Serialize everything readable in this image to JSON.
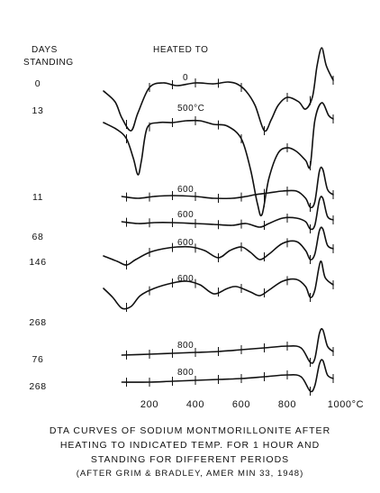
{
  "header": {
    "days_label_line1": "DAYS",
    "days_label_line2": "STANDING",
    "heated_label": "HEATED TO"
  },
  "caption": {
    "line1": "DTA CURVES OF SODIUM MONTMORILLONITE AFTER",
    "line2": "HEATING TO INDICATED TEMP. FOR 1 HOUR AND",
    "line3": "STANDING FOR DIFFERENT PERIODS",
    "line4": "(AFTER GRIM & BRADLEY, AMER MIN 33, 1948)"
  },
  "chart_data": {
    "type": "line",
    "title": "",
    "xlabel": "",
    "ylabel": "",
    "x_ticks": [
      200,
      400,
      600,
      800,
      "1000°C"
    ],
    "xlim": [
      0,
      1050
    ],
    "y_axis_values_shown": false,
    "grid": false,
    "curves": [
      {
        "days": "0",
        "heated": "0",
        "points": [
          [
            0,
            -6
          ],
          [
            50,
            -18
          ],
          [
            80,
            -36
          ],
          [
            120,
            -50
          ],
          [
            150,
            -30
          ],
          [
            200,
            -2
          ],
          [
            260,
            3
          ],
          [
            320,
            0
          ],
          [
            400,
            3
          ],
          [
            480,
            2
          ],
          [
            540,
            4
          ],
          [
            580,
            2
          ],
          [
            620,
            -6
          ],
          [
            660,
            -22
          ],
          [
            700,
            -50
          ],
          [
            730,
            -38
          ],
          [
            760,
            -22
          ],
          [
            800,
            -13
          ],
          [
            850,
            -18
          ],
          [
            880,
            -26
          ],
          [
            910,
            -12
          ],
          [
            930,
            22
          ],
          [
            950,
            42
          ],
          [
            970,
            22
          ],
          [
            1000,
            6
          ]
        ]
      },
      {
        "days": "13",
        "heated": "500°C",
        "points": [
          [
            0,
            -8
          ],
          [
            60,
            -16
          ],
          [
            100,
            -26
          ],
          [
            130,
            -48
          ],
          [
            150,
            -66
          ],
          [
            165,
            -50
          ],
          [
            190,
            -14
          ],
          [
            240,
            -8
          ],
          [
            300,
            -8
          ],
          [
            360,
            -6
          ],
          [
            420,
            -6
          ],
          [
            480,
            -10
          ],
          [
            540,
            -12
          ],
          [
            600,
            -26
          ],
          [
            640,
            -60
          ],
          [
            670,
            -98
          ],
          [
            690,
            -110
          ],
          [
            720,
            -70
          ],
          [
            760,
            -42
          ],
          [
            800,
            -36
          ],
          [
            840,
            -40
          ],
          [
            880,
            -50
          ],
          [
            900,
            -56
          ],
          [
            920,
            -6
          ],
          [
            950,
            14
          ],
          [
            980,
            0
          ],
          [
            1000,
            -4
          ]
        ]
      },
      {
        "days": "11",
        "heated": "600",
        "points": [
          [
            80,
            0
          ],
          [
            150,
            -2
          ],
          [
            220,
            0
          ],
          [
            300,
            1
          ],
          [
            400,
            0
          ],
          [
            480,
            -2
          ],
          [
            560,
            -2
          ],
          [
            620,
            0
          ],
          [
            660,
            2
          ],
          [
            720,
            4
          ],
          [
            780,
            6
          ],
          [
            840,
            6
          ],
          [
            880,
            -2
          ],
          [
            900,
            -12
          ],
          [
            920,
            -6
          ],
          [
            940,
            28
          ],
          [
            955,
            30
          ],
          [
            975,
            8
          ],
          [
            1000,
            2
          ]
        ]
      },
      {
        "days": "68",
        "heated": "600",
        "points": [
          [
            80,
            0
          ],
          [
            150,
            -2
          ],
          [
            220,
            -1
          ],
          [
            300,
            -1
          ],
          [
            400,
            -2
          ],
          [
            480,
            -3
          ],
          [
            560,
            -4
          ],
          [
            620,
            -2
          ],
          [
            680,
            -6
          ],
          [
            720,
            -2
          ],
          [
            780,
            4
          ],
          [
            840,
            4
          ],
          [
            880,
            0
          ],
          [
            900,
            -8
          ],
          [
            920,
            -4
          ],
          [
            940,
            24
          ],
          [
            955,
            26
          ],
          [
            975,
            6
          ],
          [
            1000,
            2
          ]
        ]
      },
      {
        "days": "146",
        "heated": "600",
        "points": [
          [
            0,
            -6
          ],
          [
            60,
            -12
          ],
          [
            100,
            -16
          ],
          [
            140,
            -10
          ],
          [
            200,
            -2
          ],
          [
            260,
            2
          ],
          [
            320,
            4
          ],
          [
            380,
            4
          ],
          [
            440,
            0
          ],
          [
            500,
            -8
          ],
          [
            550,
            0
          ],
          [
            600,
            4
          ],
          [
            640,
            -2
          ],
          [
            680,
            -10
          ],
          [
            720,
            -4
          ],
          [
            780,
            8
          ],
          [
            840,
            10
          ],
          [
            880,
            0
          ],
          [
            900,
            -10
          ],
          [
            920,
            -4
          ],
          [
            940,
            22
          ],
          [
            955,
            24
          ],
          [
            975,
            6
          ],
          [
            1000,
            2
          ]
        ]
      },
      {
        "days": "268",
        "heated": "600",
        "points": [
          [
            0,
            -2
          ],
          [
            40,
            -12
          ],
          [
            80,
            -24
          ],
          [
            120,
            -22
          ],
          [
            160,
            -10
          ],
          [
            220,
            -2
          ],
          [
            300,
            4
          ],
          [
            360,
            6
          ],
          [
            420,
            2
          ],
          [
            480,
            -8
          ],
          [
            540,
            -2
          ],
          [
            580,
            0
          ],
          [
            640,
            -6
          ],
          [
            680,
            -10
          ],
          [
            720,
            -4
          ],
          [
            780,
            6
          ],
          [
            840,
            8
          ],
          [
            880,
            0
          ],
          [
            900,
            -12
          ],
          [
            920,
            -4
          ],
          [
            945,
            28
          ],
          [
            965,
            10
          ],
          [
            1000,
            2
          ]
        ]
      },
      {
        "days": "76",
        "heated": "800",
        "points": [
          [
            80,
            0
          ],
          [
            200,
            1
          ],
          [
            300,
            2
          ],
          [
            400,
            3
          ],
          [
            500,
            4
          ],
          [
            600,
            6
          ],
          [
            700,
            8
          ],
          [
            800,
            10
          ],
          [
            860,
            8
          ],
          [
            900,
            -8
          ],
          [
            920,
            -4
          ],
          [
            940,
            24
          ],
          [
            955,
            28
          ],
          [
            975,
            10
          ],
          [
            1000,
            4
          ]
        ]
      },
      {
        "days": "268",
        "heated": "800",
        "points": [
          [
            80,
            0
          ],
          [
            200,
            0
          ],
          [
            300,
            1
          ],
          [
            400,
            2
          ],
          [
            500,
            3
          ],
          [
            600,
            4
          ],
          [
            700,
            6
          ],
          [
            800,
            8
          ],
          [
            860,
            6
          ],
          [
            900,
            -10
          ],
          [
            920,
            -4
          ],
          [
            940,
            20
          ],
          [
            955,
            24
          ],
          [
            975,
            8
          ],
          [
            1000,
            4
          ]
        ]
      }
    ]
  }
}
